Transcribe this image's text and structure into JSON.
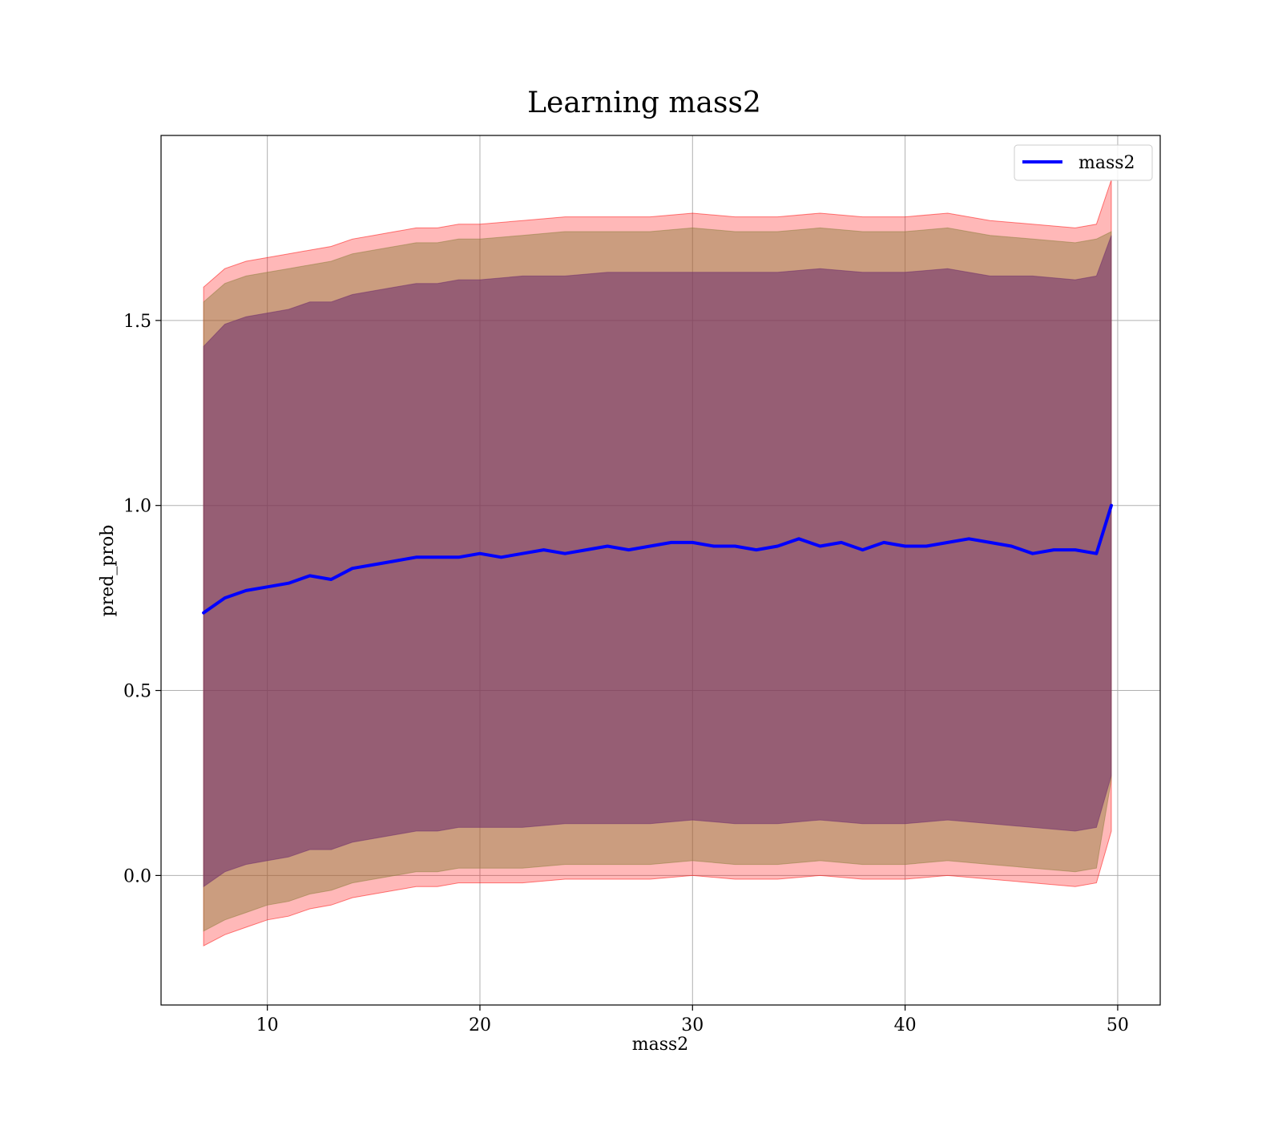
{
  "chart_data": {
    "type": "line",
    "title": "Learning mass2",
    "xlabel": "mass2",
    "ylabel": "pred_prob",
    "xlim": [
      5,
      52
    ],
    "ylim": [
      -0.35,
      2.0
    ],
    "x_ticks": [
      10,
      20,
      30,
      40,
      50
    ],
    "x_tick_labels": [
      "10",
      "20",
      "30",
      "40",
      "50"
    ],
    "y_ticks": [
      0.0,
      0.5,
      1.0,
      1.5
    ],
    "y_tick_labels": [
      "0.0",
      "0.5",
      "1.0",
      "1.5"
    ],
    "grid": true,
    "legend": {
      "position": "top-right",
      "entries": [
        "mass2"
      ]
    },
    "colors": {
      "line": "#0000ff",
      "outer_band": "#ff0000",
      "middle_band": "#8b7d3a",
      "inner_band": "#6b2a6b"
    },
    "series": [
      {
        "name": "mass2",
        "x": [
          7,
          8,
          9,
          10,
          11,
          12,
          13,
          14,
          15,
          16,
          17,
          18,
          19,
          20,
          21,
          22,
          23,
          24,
          25,
          26,
          27,
          28,
          29,
          30,
          31,
          32,
          33,
          34,
          35,
          36,
          37,
          38,
          39,
          40,
          41,
          42,
          43,
          44,
          45,
          46,
          47,
          48,
          49,
          49.7
        ],
        "y": [
          0.71,
          0.75,
          0.77,
          0.78,
          0.79,
          0.81,
          0.8,
          0.83,
          0.84,
          0.85,
          0.86,
          0.86,
          0.86,
          0.87,
          0.86,
          0.87,
          0.88,
          0.87,
          0.88,
          0.89,
          0.88,
          0.89,
          0.9,
          0.9,
          0.89,
          0.89,
          0.88,
          0.89,
          0.91,
          0.89,
          0.9,
          0.88,
          0.9,
          0.89,
          0.89,
          0.9,
          0.91,
          0.9,
          0.89,
          0.87,
          0.88,
          0.88,
          0.87,
          1.0
        ]
      }
    ],
    "bands": [
      {
        "level": "outer",
        "x": [
          7,
          8,
          9,
          10,
          11,
          12,
          13,
          14,
          15,
          16,
          17,
          18,
          19,
          20,
          22,
          24,
          26,
          28,
          30,
          32,
          34,
          36,
          38,
          40,
          42,
          44,
          46,
          48,
          49,
          49.7
        ],
        "upper": [
          1.59,
          1.64,
          1.66,
          1.67,
          1.68,
          1.69,
          1.7,
          1.72,
          1.73,
          1.74,
          1.75,
          1.75,
          1.76,
          1.76,
          1.77,
          1.78,
          1.78,
          1.78,
          1.79,
          1.78,
          1.78,
          1.79,
          1.78,
          1.78,
          1.79,
          1.77,
          1.76,
          1.75,
          1.76,
          1.88
        ],
        "lower": [
          -0.19,
          -0.16,
          -0.14,
          -0.12,
          -0.11,
          -0.09,
          -0.08,
          -0.06,
          -0.05,
          -0.04,
          -0.03,
          -0.03,
          -0.02,
          -0.02,
          -0.02,
          -0.01,
          -0.01,
          -0.01,
          0.0,
          -0.01,
          -0.01,
          0.0,
          -0.01,
          -0.01,
          0.0,
          -0.01,
          -0.02,
          -0.03,
          -0.02,
          0.12
        ]
      },
      {
        "level": "middle",
        "x": [
          7,
          8,
          9,
          10,
          11,
          12,
          13,
          14,
          15,
          16,
          17,
          18,
          19,
          20,
          22,
          24,
          26,
          28,
          30,
          32,
          34,
          36,
          38,
          40,
          42,
          44,
          46,
          48,
          49,
          49.7
        ],
        "upper": [
          1.55,
          1.6,
          1.62,
          1.63,
          1.64,
          1.65,
          1.66,
          1.68,
          1.69,
          1.7,
          1.71,
          1.71,
          1.72,
          1.72,
          1.73,
          1.74,
          1.74,
          1.74,
          1.75,
          1.74,
          1.74,
          1.75,
          1.74,
          1.74,
          1.75,
          1.73,
          1.72,
          1.71,
          1.72,
          1.74
        ],
        "lower": [
          -0.15,
          -0.12,
          -0.1,
          -0.08,
          -0.07,
          -0.05,
          -0.04,
          -0.02,
          -0.01,
          0.0,
          0.01,
          0.01,
          0.02,
          0.02,
          0.02,
          0.03,
          0.03,
          0.03,
          0.04,
          0.03,
          0.03,
          0.04,
          0.03,
          0.03,
          0.04,
          0.03,
          0.02,
          0.01,
          0.02,
          0.26
        ]
      },
      {
        "level": "inner",
        "x": [
          7,
          8,
          9,
          10,
          11,
          12,
          13,
          14,
          15,
          16,
          17,
          18,
          19,
          20,
          22,
          24,
          26,
          28,
          30,
          32,
          34,
          36,
          38,
          40,
          42,
          44,
          46,
          48,
          49,
          49.7
        ],
        "upper": [
          1.43,
          1.49,
          1.51,
          1.52,
          1.53,
          1.55,
          1.55,
          1.57,
          1.58,
          1.59,
          1.6,
          1.6,
          1.61,
          1.61,
          1.62,
          1.62,
          1.63,
          1.63,
          1.63,
          1.63,
          1.63,
          1.64,
          1.63,
          1.63,
          1.64,
          1.62,
          1.62,
          1.61,
          1.62,
          1.73
        ],
        "lower": [
          -0.03,
          0.01,
          0.03,
          0.04,
          0.05,
          0.07,
          0.07,
          0.09,
          0.1,
          0.11,
          0.12,
          0.12,
          0.13,
          0.13,
          0.13,
          0.14,
          0.14,
          0.14,
          0.15,
          0.14,
          0.14,
          0.15,
          0.14,
          0.14,
          0.15,
          0.14,
          0.13,
          0.12,
          0.13,
          0.27
        ]
      }
    ]
  }
}
